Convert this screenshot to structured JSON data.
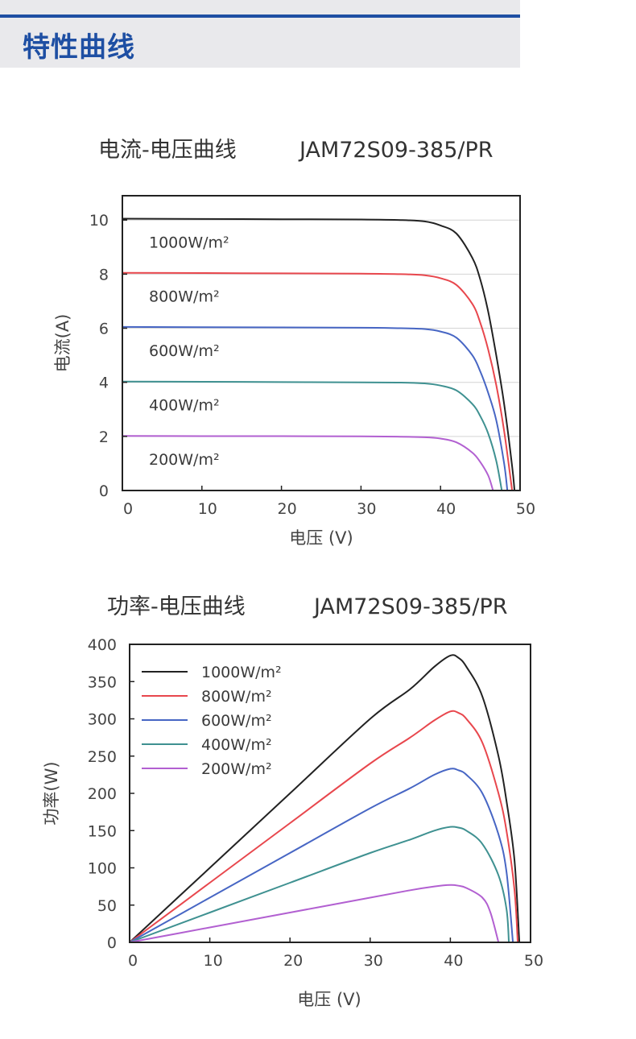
{
  "header": {
    "title": "特性曲线",
    "accent_color": "#1e4fa3"
  },
  "chart_data": [
    {
      "type": "line",
      "title_cn": "电流-电压曲线",
      "title_model": "JAM72S09-385/PR",
      "xlabel": "电压 (V)",
      "ylabel": "电流(A)",
      "xlim": [
        0,
        50
      ],
      "ylim": [
        0,
        10.9
      ],
      "xticks": [
        0,
        10,
        20,
        30,
        40,
        50
      ],
      "yticks": [
        0,
        2,
        4,
        6,
        8,
        10
      ],
      "grid": "horizontal",
      "legend": "inline labels",
      "series": [
        {
          "name": "1000W/m²",
          "color": "#222222",
          "isc": 10.05,
          "voc": 49.3,
          "x": [
            0,
            10,
            20,
            30,
            35,
            38,
            40,
            42,
            44,
            45,
            46,
            47,
            48,
            49,
            49.3
          ],
          "y": [
            10.05,
            10.04,
            10.03,
            10.02,
            10.0,
            9.95,
            9.8,
            9.5,
            8.6,
            7.8,
            6.6,
            5.0,
            3.2,
            0.9,
            0
          ]
        },
        {
          "name": "800W/m²",
          "color": "#e8474d",
          "isc": 8.05,
          "voc": 49.0,
          "x": [
            0,
            10,
            20,
            30,
            35,
            38,
            40,
            42,
            44,
            45,
            46,
            47,
            48,
            49
          ],
          "y": [
            8.05,
            8.04,
            8.03,
            8.02,
            8.0,
            7.96,
            7.85,
            7.6,
            6.9,
            6.2,
            5.2,
            3.9,
            2.2,
            0
          ]
        },
        {
          "name": "600W/m²",
          "color": "#4766c4",
          "isc": 6.05,
          "voc": 48.4,
          "x": [
            0,
            10,
            20,
            30,
            35,
            38,
            40,
            42,
            44,
            45,
            46,
            47,
            48,
            48.4
          ],
          "y": [
            6.05,
            6.04,
            6.03,
            6.02,
            6.0,
            5.97,
            5.88,
            5.65,
            5.0,
            4.4,
            3.6,
            2.6,
            1.0,
            0
          ]
        },
        {
          "name": "400W/m²",
          "color": "#3f9191",
          "isc": 4.03,
          "voc": 47.7,
          "x": [
            0,
            10,
            20,
            30,
            35,
            38,
            40,
            42,
            44,
            45,
            46,
            47,
            47.7
          ],
          "y": [
            4.03,
            4.02,
            4.01,
            4.0,
            3.99,
            3.96,
            3.88,
            3.7,
            3.2,
            2.75,
            2.1,
            1.1,
            0
          ]
        },
        {
          "name": "200W/m²",
          "color": "#b260d1",
          "isc": 2.02,
          "voc": 46.6,
          "x": [
            0,
            10,
            20,
            30,
            35,
            38,
            40,
            42,
            44,
            45,
            46,
            46.6
          ],
          "y": [
            2.02,
            2.01,
            2.01,
            2.0,
            1.99,
            1.97,
            1.92,
            1.78,
            1.4,
            1.05,
            0.55,
            0
          ]
        }
      ]
    },
    {
      "type": "line",
      "title_cn": "功率-电压曲线",
      "title_model": "JAM72S09-385/PR",
      "xlabel": "电压 (V)",
      "ylabel": "功率(W)",
      "xlim": [
        0,
        50
      ],
      "ylim": [
        0,
        400
      ],
      "xticks": [
        0,
        10,
        20,
        30,
        40,
        50
      ],
      "yticks": [
        0,
        50,
        100,
        150,
        200,
        250,
        300,
        350,
        400
      ],
      "grid": "none",
      "legend": "top-left",
      "series": [
        {
          "name": "1000W/m²",
          "color": "#222222",
          "x": [
            0,
            10,
            20,
            30,
            35,
            38,
            40,
            41,
            42,
            44,
            46,
            47,
            48,
            48.6
          ],
          "y": [
            0,
            100,
            200,
            300,
            340,
            370,
            385,
            382,
            370,
            330,
            250,
            190,
            110,
            0
          ]
        },
        {
          "name": "800W/m²",
          "color": "#e8474d",
          "x": [
            0,
            10,
            20,
            30,
            35,
            38,
            40,
            41,
            42,
            44,
            46,
            47,
            48,
            48.4
          ],
          "y": [
            0,
            80,
            160,
            240,
            275,
            298,
            310,
            308,
            300,
            268,
            200,
            150,
            70,
            0
          ]
        },
        {
          "name": "600W/m²",
          "color": "#4766c4",
          "x": [
            0,
            10,
            20,
            30,
            35,
            38,
            40,
            41,
            42,
            44,
            46,
            47,
            47.8
          ],
          "y": [
            0,
            60,
            120,
            180,
            207,
            225,
            233,
            231,
            225,
            200,
            145,
            95,
            0
          ]
        },
        {
          "name": "400W/m²",
          "color": "#3f9191",
          "x": [
            0,
            10,
            20,
            30,
            35,
            38,
            40,
            41,
            42,
            44,
            46,
            47,
            47.3
          ],
          "y": [
            0,
            40,
            80,
            120,
            138,
            150,
            155,
            154,
            150,
            132,
            90,
            45,
            0
          ]
        },
        {
          "name": "200W/m²",
          "color": "#b260d1",
          "x": [
            0,
            10,
            20,
            30,
            35,
            38,
            40,
            41,
            42,
            44,
            45,
            46
          ],
          "y": [
            0,
            20,
            40,
            60,
            70,
            75,
            77,
            76,
            73,
            60,
            40,
            0
          ]
        }
      ]
    }
  ]
}
